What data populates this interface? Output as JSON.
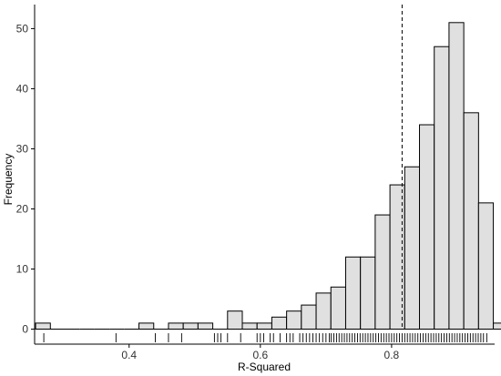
{
  "chart_data": {
    "type": "histogram",
    "xlabel": "R-Squared",
    "ylabel": "Frequency",
    "xlim": [
      0.256,
      0.957
    ],
    "ylim": [
      -2.5,
      54
    ],
    "bin_width": 0.0225,
    "bins": [
      {
        "x0": 0.2575,
        "x1": 0.28,
        "count": 1
      },
      {
        "x0": 0.28,
        "x1": 0.3025,
        "count": 0
      },
      {
        "x0": 0.3025,
        "x1": 0.325,
        "count": 0
      },
      {
        "x0": 0.325,
        "x1": 0.3475,
        "count": 0
      },
      {
        "x0": 0.3475,
        "x1": 0.37,
        "count": 0
      },
      {
        "x0": 0.37,
        "x1": 0.3925,
        "count": 0
      },
      {
        "x0": 0.3925,
        "x1": 0.415,
        "count": 0
      },
      {
        "x0": 0.415,
        "x1": 0.4375,
        "count": 1
      },
      {
        "x0": 0.4375,
        "x1": 0.46,
        "count": 0
      },
      {
        "x0": 0.46,
        "x1": 0.4825,
        "count": 1
      },
      {
        "x0": 0.4825,
        "x1": 0.505,
        "count": 1
      },
      {
        "x0": 0.505,
        "x1": 0.5275,
        "count": 1
      },
      {
        "x0": 0.5275,
        "x1": 0.55,
        "count": 0
      },
      {
        "x0": 0.55,
        "x1": 0.5725,
        "count": 3
      },
      {
        "x0": 0.5725,
        "x1": 0.595,
        "count": 1
      },
      {
        "x0": 0.595,
        "x1": 0.6175,
        "count": 1
      },
      {
        "x0": 0.6175,
        "x1": 0.64,
        "count": 2
      },
      {
        "x0": 0.64,
        "x1": 0.6625,
        "count": 3
      },
      {
        "x0": 0.6625,
        "x1": 0.685,
        "count": 4
      },
      {
        "x0": 0.685,
        "x1": 0.7075,
        "count": 6
      },
      {
        "x0": 0.7075,
        "x1": 0.73,
        "count": 7
      },
      {
        "x0": 0.73,
        "x1": 0.7525,
        "count": 12
      },
      {
        "x0": 0.7525,
        "x1": 0.775,
        "count": 12
      },
      {
        "x0": 0.775,
        "x1": 0.7975,
        "count": 19
      },
      {
        "x0": 0.7975,
        "x1": 0.82,
        "count": 24
      },
      {
        "x0": 0.82,
        "x1": 0.8425,
        "count": 27
      },
      {
        "x0": 0.8425,
        "x1": 0.865,
        "count": 34
      },
      {
        "x0": 0.865,
        "x1": 0.8875,
        "count": 47
      },
      {
        "x0": 0.8875,
        "x1": 0.91,
        "count": 51
      },
      {
        "x0": 0.91,
        "x1": 0.9325,
        "count": 36
      },
      {
        "x0": 0.9325,
        "x1": 0.955,
        "count": 21
      },
      {
        "x0": 0.955,
        "x1": 0.9775,
        "count": 1
      }
    ],
    "x_ticks": [
      0.4,
      0.6,
      0.8
    ],
    "x_tick_labels": [
      "0.4",
      "0.6",
      "0.8"
    ],
    "y_ticks": [
      0,
      10,
      20,
      30,
      40,
      50
    ],
    "y_tick_labels": [
      "0",
      "10",
      "20",
      "30",
      "40",
      "50"
    ],
    "reference_line": {
      "x": 0.816,
      "style": "dashed"
    },
    "rug": [
      0.27,
      0.38,
      0.44,
      0.46,
      0.48,
      0.53,
      0.535,
      0.54,
      0.55,
      0.57,
      0.595,
      0.6,
      0.605,
      0.615,
      0.62,
      0.63,
      0.64,
      0.645,
      0.65,
      0.66,
      0.665,
      0.67,
      0.675,
      0.68,
      0.685,
      0.69,
      0.695,
      0.7,
      0.705,
      0.708,
      0.712,
      0.716,
      0.72,
      0.724,
      0.728,
      0.732,
      0.736,
      0.74,
      0.744,
      0.748,
      0.752,
      0.756,
      0.76,
      0.764,
      0.768,
      0.772,
      0.776,
      0.78,
      0.784,
      0.788,
      0.792,
      0.796,
      0.8,
      0.804,
      0.808,
      0.812,
      0.816,
      0.82,
      0.824,
      0.828,
      0.832,
      0.836,
      0.84,
      0.844,
      0.848,
      0.852,
      0.856,
      0.86,
      0.864,
      0.868,
      0.872,
      0.876,
      0.88,
      0.884,
      0.888,
      0.892,
      0.896,
      0.9,
      0.904,
      0.908,
      0.912,
      0.916,
      0.92,
      0.924,
      0.928,
      0.932,
      0.936,
      0.94,
      0.945
    ],
    "grid": false,
    "colors": {
      "bar_fill": "#e0e0e0",
      "bar_stroke": "#000000",
      "axis": "#000000",
      "text": "#333333"
    }
  }
}
